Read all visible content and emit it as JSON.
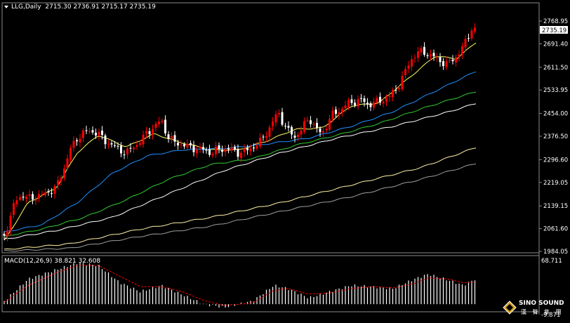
{
  "header": {
    "symbol_timeframe": "LLG,Daily",
    "ohlc": "2715.30 2736.91 2715.17 2735.19"
  },
  "macd": {
    "label": "MACD(12,26,9)",
    "values": "38.821 32.608",
    "axis_top": "68.711",
    "axis_bottom": "-9.871"
  },
  "price_axis": {
    "labels": [
      "2768.95",
      "2691.40",
      "2611.50",
      "2533.95",
      "2454.00",
      "2376.50",
      "2296.60",
      "2219.05",
      "2139.15",
      "2061.60",
      "1984.05"
    ],
    "current_price": "2735.19"
  },
  "logo": {
    "name": "SINO SOUND",
    "cn": "漢 聲 集 團"
  },
  "colors": {
    "background": "#000000",
    "up_candle": "#ff0000",
    "down_candle": "#ffffff",
    "ma_short": "#ffff66",
    "ma_medium": "#1e90ff",
    "ma_long": "#32cd32",
    "ma_longer": "#ffffff",
    "ma_very_long": "#fff2a8",
    "ma_longest": "#9e9e9e",
    "macd_hist": "#ffffff",
    "macd_signal": "#ff0000"
  },
  "chart_data": {
    "type": "candlestick",
    "timeframe": "Daily",
    "ylim": [
      1984.05,
      2768.95
    ],
    "macd_ylim": [
      -9.871,
      68.711
    ]
  }
}
